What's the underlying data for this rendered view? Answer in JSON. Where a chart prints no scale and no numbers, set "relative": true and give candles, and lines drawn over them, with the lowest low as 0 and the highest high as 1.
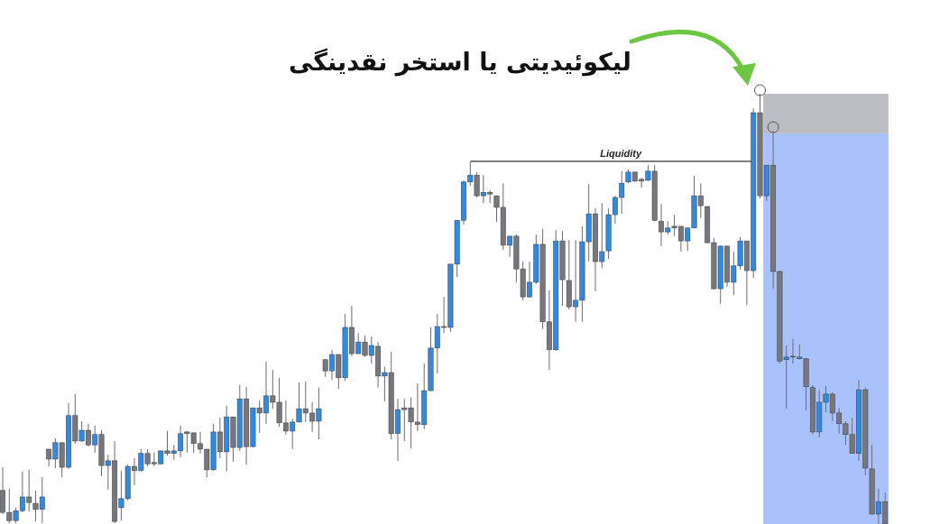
{
  "chart_data": {
    "type": "candlestick",
    "title": "لیکوئیدیتی یا استخر نقدینگی",
    "relative": true,
    "categories": [
      null,
      null,
      null,
      null,
      null,
      null,
      null,
      null,
      null,
      null,
      null,
      null,
      null,
      null,
      null,
      null,
      null,
      null,
      null,
      null,
      null,
      null,
      null,
      null,
      null,
      null,
      null,
      null,
      null,
      null,
      null,
      null,
      null,
      null,
      null,
      null,
      null,
      null,
      null,
      null,
      null,
      null,
      null,
      null,
      null,
      null,
      null,
      null,
      null,
      null,
      null,
      null,
      null,
      null,
      null,
      null,
      null,
      null,
      null,
      null,
      null,
      null,
      null,
      null,
      null,
      null,
      null,
      null,
      null,
      null,
      null,
      null,
      null,
      null,
      null,
      null,
      null,
      null,
      null,
      null,
      null,
      null,
      null,
      null,
      null,
      null,
      null,
      null,
      null,
      null,
      null,
      null,
      null,
      null,
      null,
      null,
      null,
      null,
      null,
      null,
      null,
      null,
      null,
      null,
      null,
      null,
      null,
      null,
      null,
      null,
      null,
      null,
      null,
      null,
      null,
      null,
      null,
      null,
      null,
      null,
      null,
      null,
      null,
      null,
      null,
      null,
      null,
      null,
      null,
      null,
      null,
      null,
      null,
      null,
      null
    ],
    "ohlc": [
      [
        0.078,
        0.132,
        0.023,
        0.027
      ],
      [
        0.027,
        0.082,
        0.002,
        0.008
      ],
      [
        0.008,
        0.038,
        0.002,
        0.031
      ],
      [
        0.031,
        0.122,
        0.027,
        0.063
      ],
      [
        0.063,
        0.126,
        0.029,
        0.05
      ],
      [
        0.048,
        0.078,
        0.006,
        0.034
      ],
      [
        0.034,
        0.109,
        0.002,
        0.063
      ],
      [
        0.174,
        0.174,
        0.134,
        0.151
      ],
      [
        0.151,
        0.199,
        0.13,
        0.189
      ],
      [
        0.189,
        0.189,
        0.109,
        0.132
      ],
      [
        0.132,
        0.281,
        0.128,
        0.252
      ],
      [
        0.252,
        0.302,
        0.187,
        0.193
      ],
      [
        0.193,
        0.239,
        0.191,
        0.218
      ],
      [
        0.218,
        0.233,
        0.18,
        0.184
      ],
      [
        0.184,
        0.229,
        0.166,
        0.208
      ],
      [
        0.208,
        0.218,
        0.111,
        0.136
      ],
      [
        0.136,
        0.161,
        0.08,
        0.147
      ],
      [
        0.147,
        0.193,
        0.002,
        0.006
      ],
      [
        0.038,
        0.124,
        0.008,
        0.059
      ],
      [
        0.059,
        0.138,
        0.055,
        0.134
      ],
      [
        0.134,
        0.153,
        0.09,
        0.124
      ],
      [
        0.124,
        0.174,
        0.122,
        0.164
      ],
      [
        0.164,
        0.174,
        0.134,
        0.14
      ],
      [
        0.143,
        0.166,
        0.134,
        0.14
      ],
      [
        0.14,
        0.17,
        0.138,
        0.17
      ],
      [
        0.17,
        0.216,
        0.159,
        0.164
      ],
      [
        0.164,
        0.184,
        0.149,
        0.17
      ],
      [
        0.17,
        0.229,
        0.155,
        0.21
      ],
      [
        0.214,
        0.216,
        0.166,
        0.21
      ],
      [
        0.212,
        0.212,
        0.166,
        0.187
      ],
      [
        0.187,
        0.214,
        0.164,
        0.174
      ],
      [
        0.174,
        0.174,
        0.109,
        0.126
      ],
      [
        0.126,
        0.233,
        0.124,
        0.214
      ],
      [
        0.214,
        0.247,
        0.153,
        0.168
      ],
      [
        0.168,
        0.275,
        0.122,
        0.249
      ],
      [
        0.249,
        0.249,
        0.145,
        0.178
      ],
      [
        0.178,
        0.323,
        0.17,
        0.291
      ],
      [
        0.291,
        0.319,
        0.138,
        0.18
      ],
      [
        0.18,
        0.27,
        0.178,
        0.27
      ],
      [
        0.27,
        0.287,
        0.212,
        0.258
      ],
      [
        0.258,
        0.377,
        0.233,
        0.298
      ],
      [
        0.298,
        0.358,
        0.268,
        0.283
      ],
      [
        0.283,
        0.34,
        0.226,
        0.235
      ],
      [
        0.235,
        0.287,
        0.208,
        0.216
      ],
      [
        0.216,
        0.245,
        0.174,
        0.237
      ],
      [
        0.237,
        0.329,
        0.237,
        0.268
      ],
      [
        0.268,
        0.331,
        0.237,
        0.258
      ],
      [
        0.258,
        0.283,
        0.214,
        0.239
      ],
      [
        0.239,
        0.317,
        0.197,
        0.268
      ],
      [
        0.382,
        0.382,
        0.342,
        0.356
      ],
      [
        0.356,
        0.405,
        0.335,
        0.394
      ],
      [
        0.394,
        0.394,
        0.314,
        0.34
      ],
      [
        0.34,
        0.488,
        0.333,
        0.457
      ],
      [
        0.457,
        0.507,
        0.39,
        0.396
      ],
      [
        0.396,
        0.444,
        0.396,
        0.423
      ],
      [
        0.423,
        0.438,
        0.388,
        0.392
      ],
      [
        0.392,
        0.436,
        0.373,
        0.415
      ],
      [
        0.413,
        0.423,
        0.317,
        0.344
      ],
      [
        0.344,
        0.365,
        0.285,
        0.352
      ],
      [
        0.352,
        0.4,
        0.197,
        0.21
      ],
      [
        0.21,
        0.291,
        0.147,
        0.266
      ],
      [
        0.27,
        0.291,
        0.193,
        0.266
      ],
      [
        0.27,
        0.294,
        0.176,
        0.237
      ],
      [
        0.237,
        0.327,
        0.216,
        0.231
      ],
      [
        0.231,
        0.373,
        0.22,
        0.31
      ],
      [
        0.31,
        0.457,
        0.31,
        0.409
      ],
      [
        0.409,
        0.488,
        0.35,
        0.459
      ],
      [
        0.459,
        0.528,
        0.444,
        0.457
      ],
      [
        0.457,
        0.604,
        0.447,
        0.604
      ],
      [
        0.604,
        0.706,
        0.574,
        0.706
      ],
      [
        0.706,
        0.799,
        0.696,
        0.795
      ],
      [
        0.795,
        0.843,
        0.786,
        0.811
      ],
      [
        0.811,
        0.818,
        0.759,
        0.763
      ],
      [
        0.763,
        0.811,
        0.746,
        0.771
      ],
      [
        0.771,
        0.776,
        0.746,
        0.767
      ],
      [
        0.763,
        0.763,
        0.702,
        0.736
      ],
      [
        0.736,
        0.792,
        0.637,
        0.648
      ],
      [
        0.648,
        0.669,
        0.621,
        0.669
      ],
      [
        0.669,
        0.673,
        0.562,
        0.593
      ],
      [
        0.593,
        0.61,
        0.52,
        0.528
      ],
      [
        0.528,
        0.61,
        0.526,
        0.562
      ],
      [
        0.562,
        0.673,
        0.558,
        0.65
      ],
      [
        0.65,
        0.686,
        0.453,
        0.47
      ],
      [
        0.47,
        0.543,
        0.358,
        0.405
      ],
      [
        0.405,
        0.683,
        0.403,
        0.658
      ],
      [
        0.658,
        0.681,
        0.507,
        0.568
      ],
      [
        0.566,
        0.66,
        0.499,
        0.505
      ],
      [
        0.505,
        0.66,
        0.47,
        0.52
      ],
      [
        0.52,
        0.692,
        0.47,
        0.656
      ],
      [
        0.656,
        0.79,
        0.61,
        0.721
      ],
      [
        0.721,
        0.734,
        0.541,
        0.61
      ],
      [
        0.61,
        0.746,
        0.595,
        0.633
      ],
      [
        0.635,
        0.734,
        0.616,
        0.719
      ],
      [
        0.719,
        0.763,
        0.698,
        0.759
      ],
      [
        0.759,
        0.82,
        0.721,
        0.792
      ],
      [
        0.795,
        0.824,
        0.792,
        0.818
      ],
      [
        0.818,
        0.818,
        0.795,
        0.797
      ],
      [
        0.801,
        0.805,
        0.782,
        0.797
      ],
      [
        0.799,
        0.834,
        0.797,
        0.82
      ],
      [
        0.82,
        0.834,
        0.704,
        0.706
      ],
      [
        0.704,
        0.744,
        0.646,
        0.679
      ],
      [
        0.679,
        0.704,
        0.673,
        0.688
      ],
      [
        0.692,
        0.719,
        0.669,
        0.688
      ],
      [
        0.692,
        0.692,
        0.633,
        0.658
      ],
      [
        0.658,
        0.69,
        0.635,
        0.688
      ],
      [
        0.688,
        0.809,
        0.688,
        0.763
      ],
      [
        0.763,
        0.792,
        0.711,
        0.74
      ],
      [
        0.738,
        0.738,
        0.652,
        0.654
      ],
      [
        0.654,
        0.665,
        0.545,
        0.547
      ],
      [
        0.547,
        0.646,
        0.512,
        0.646
      ],
      [
        0.646,
        0.646,
        0.551,
        0.562
      ],
      [
        0.562,
        0.633,
        0.532,
        0.6
      ],
      [
        0.6,
        0.667,
        0.591,
        0.658
      ],
      [
        0.658,
        0.658,
        0.509,
        0.589
      ],
      [
        0.589,
        0.966,
        0.572,
        0.956
      ],
      [
        0.956,
        1,
        0.757,
        0.763
      ],
      [
        0.763,
        0.834,
        0.751,
        0.834
      ],
      [
        0.834,
        0.914,
        0.547,
        0.587
      ],
      [
        0.587,
        0.589,
        0.373,
        0.379
      ],
      [
        0.382,
        0.415,
        0.268,
        0.388
      ],
      [
        0.39,
        0.43,
        0.373,
        0.388
      ],
      [
        0.384,
        0.417,
        0.382,
        0.388
      ],
      [
        0.384,
        0.386,
        0.264,
        0.319
      ],
      [
        0.317,
        0.323,
        0.208,
        0.214
      ],
      [
        0.214,
        0.312,
        0.201,
        0.283
      ],
      [
        0.283,
        0.321,
        0.26,
        0.302
      ],
      [
        0.302,
        0.306,
        0.239,
        0.258
      ],
      [
        0.258,
        0.27,
        0.21,
        0.233
      ],
      [
        0.233,
        0.239,
        0.184,
        0.208
      ],
      [
        0.208,
        0.247,
        0.164,
        0.164
      ],
      [
        0.164,
        0.335,
        0.147,
        0.312
      ],
      [
        0.312,
        0.317,
        0.113,
        0.13
      ],
      [
        0.128,
        0.184,
        0.023,
        0.023
      ],
      [
        0.023,
        0.082,
        0,
        0.052
      ],
      [
        0.052,
        0.073,
        0,
        0
      ]
    ],
    "colors": [
      "#77787e",
      "#77787e",
      "#2f8ae0",
      "#2f8ae0",
      "#77787e",
      "#77787e",
      "#2f8ae0",
      "#77787e",
      "#2f8ae0",
      "#77787e",
      "#2f8ae0",
      "#77787e",
      "#2f8ae0",
      "#77787e",
      "#2f8ae0",
      "#77787e",
      "#2f8ae0",
      "#77787e",
      "#2f8ae0",
      "#2f8ae0",
      "#77787e",
      "#2f8ae0",
      "#77787e",
      "#77787e",
      "#2f8ae0",
      "#77787e",
      "#2f8ae0",
      "#2f8ae0",
      "#77787e",
      "#77787e",
      "#77787e",
      "#77787e",
      "#2f8ae0",
      "#77787e",
      "#2f8ae0",
      "#77787e",
      "#2f8ae0",
      "#77787e",
      "#2f8ae0",
      "#77787e",
      "#2f8ae0",
      "#77787e",
      "#77787e",
      "#77787e",
      "#2f8ae0",
      "#2f8ae0",
      "#77787e",
      "#77787e",
      "#2f8ae0",
      "#77787e",
      "#2f8ae0",
      "#77787e",
      "#2f8ae0",
      "#77787e",
      "#2f8ae0",
      "#77787e",
      "#2f8ae0",
      "#77787e",
      "#2f8ae0",
      "#77787e",
      "#2f8ae0",
      "#77787e",
      "#77787e",
      "#77787e",
      "#2f8ae0",
      "#2f8ae0",
      "#2f8ae0",
      "#77787e",
      "#2f8ae0",
      "#2f8ae0",
      "#2f8ae0",
      "#2f8ae0",
      "#77787e",
      "#2f8ae0",
      "#77787e",
      "#77787e",
      "#77787e",
      "#2f8ae0",
      "#77787e",
      "#77787e",
      "#2f8ae0",
      "#2f8ae0",
      "#77787e",
      "#77787e",
      "#2f8ae0",
      "#77787e",
      "#77787e",
      "#2f8ae0",
      "#2f8ae0",
      "#2f8ae0",
      "#77787e",
      "#2f8ae0",
      "#2f8ae0",
      "#2f8ae0",
      "#2f8ae0",
      "#2f8ae0",
      "#77787e",
      "#77787e",
      "#2f8ae0",
      "#77787e",
      "#77787e",
      "#2f8ae0",
      "#77787e",
      "#77787e",
      "#2f8ae0",
      "#2f8ae0",
      "#77787e",
      "#77787e",
      "#77787e",
      "#2f8ae0",
      "#77787e",
      "#2f8ae0",
      "#2f8ae0",
      "#77787e",
      "#2f8ae0",
      "#77787e",
      "#2f8ae0",
      "#77787e",
      "#77787e",
      "#2f8ae0",
      "#77787e",
      "#2f8ae0",
      "#77787e",
      "#77787e",
      "#2f8ae0",
      "#2f8ae0",
      "#77787e",
      "#77787e",
      "#77787e",
      "#77787e",
      "#2f8ae0",
      "#77787e",
      "#77787e",
      "#2f8ae0",
      "#77787e"
    ],
    "ref_lines": [
      {
        "axis": "y",
        "value": 0.843,
        "label": "Liquidity",
        "color": "#333333"
      }
    ],
    "bands": [
      {
        "axis": "y",
        "from": 0,
        "to": 0.908,
        "color": "#aac2fc"
      },
      {
        "axis": "y",
        "from": 0.908,
        "to": 1,
        "color": "#bcbcc4"
      }
    ]
  }
}
